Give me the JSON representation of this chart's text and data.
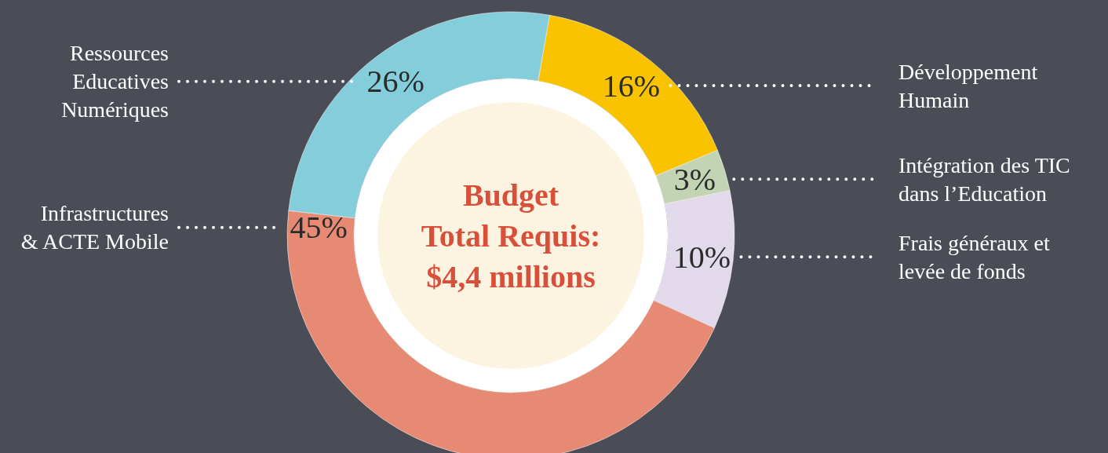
{
  "chart_data": {
    "type": "donut",
    "title": "Budget\nTotal Requis:\n$4,4 millions",
    "categories": [
      "Développement\nHumain",
      "Intégration des TIC\ndans l’Education",
      "Frais généraux et\nlevée de fonds",
      "Infrastructures\n& ACTE Mobile",
      "Ressources\nEducatives\nNumériques"
    ],
    "values": [
      16,
      3,
      10,
      45,
      26
    ],
    "value_labels": [
      "16%",
      "3%",
      "10%",
      "45%",
      "26%"
    ],
    "colors": [
      "#f9c300",
      "#c3d4b5",
      "#e2d9ea",
      "#e68a73",
      "#84cedb"
    ]
  }
}
